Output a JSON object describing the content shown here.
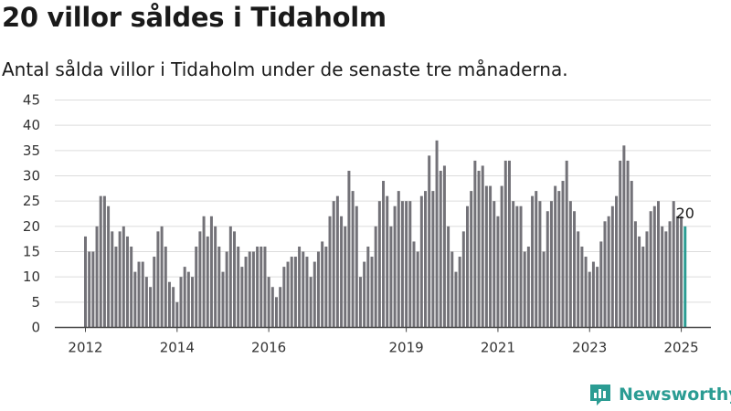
{
  "title": "20 villor såldes i Tidaholm",
  "subtitle": "Antal sålda villor i Tidaholm under de senaste tre månaderna.",
  "brand": {
    "name": "Newsworthy",
    "color": "#2b9c93"
  },
  "chart_data": {
    "type": "bar",
    "ylim": [
      0,
      45
    ],
    "yticks": [
      "0",
      "5",
      "10",
      "15",
      "20",
      "25",
      "30",
      "35",
      "40",
      "45"
    ],
    "xticks": [
      {
        "label": "2012",
        "index": 0
      },
      {
        "label": "2014",
        "index": 24
      },
      {
        "label": "2016",
        "index": 48
      },
      {
        "label": "2019",
        "index": 84
      },
      {
        "label": "2021",
        "index": 108
      },
      {
        "label": "2023",
        "index": 132
      },
      {
        "label": "2025",
        "index": 156
      }
    ],
    "grid": true,
    "bar_color": "#737278",
    "highlight_color": "#2b9c93",
    "last_label": "20",
    "values": [
      18,
      15,
      15,
      20,
      26,
      26,
      24,
      19,
      16,
      19,
      20,
      18,
      16,
      11,
      13,
      13,
      10,
      8,
      14,
      19,
      20,
      16,
      9,
      8,
      5,
      10,
      12,
      11,
      10,
      16,
      19,
      22,
      18,
      22,
      20,
      16,
      11,
      15,
      20,
      19,
      16,
      12,
      14,
      15,
      15,
      16,
      16,
      16,
      10,
      8,
      6,
      8,
      12,
      13,
      14,
      14,
      16,
      15,
      14,
      10,
      13,
      15,
      17,
      16,
      22,
      25,
      26,
      22,
      20,
      31,
      27,
      24,
      10,
      13,
      16,
      14,
      20,
      25,
      29,
      26,
      20,
      24,
      27,
      25,
      25,
      25,
      17,
      15,
      26,
      27,
      34,
      27,
      37,
      31,
      32,
      20,
      15,
      11,
      14,
      19,
      24,
      27,
      33,
      31,
      32,
      28,
      28,
      25,
      22,
      28,
      33,
      33,
      25,
      24,
      24,
      15,
      16,
      26,
      27,
      25,
      15,
      23,
      25,
      28,
      27,
      29,
      33,
      25,
      23,
      19,
      16,
      14,
      11,
      13,
      12,
      17,
      21,
      22,
      24,
      26,
      33,
      36,
      33,
      29,
      21,
      18,
      16,
      19,
      23,
      24,
      25,
      20,
      19,
      21,
      25,
      22,
      22,
      20
    ]
  }
}
